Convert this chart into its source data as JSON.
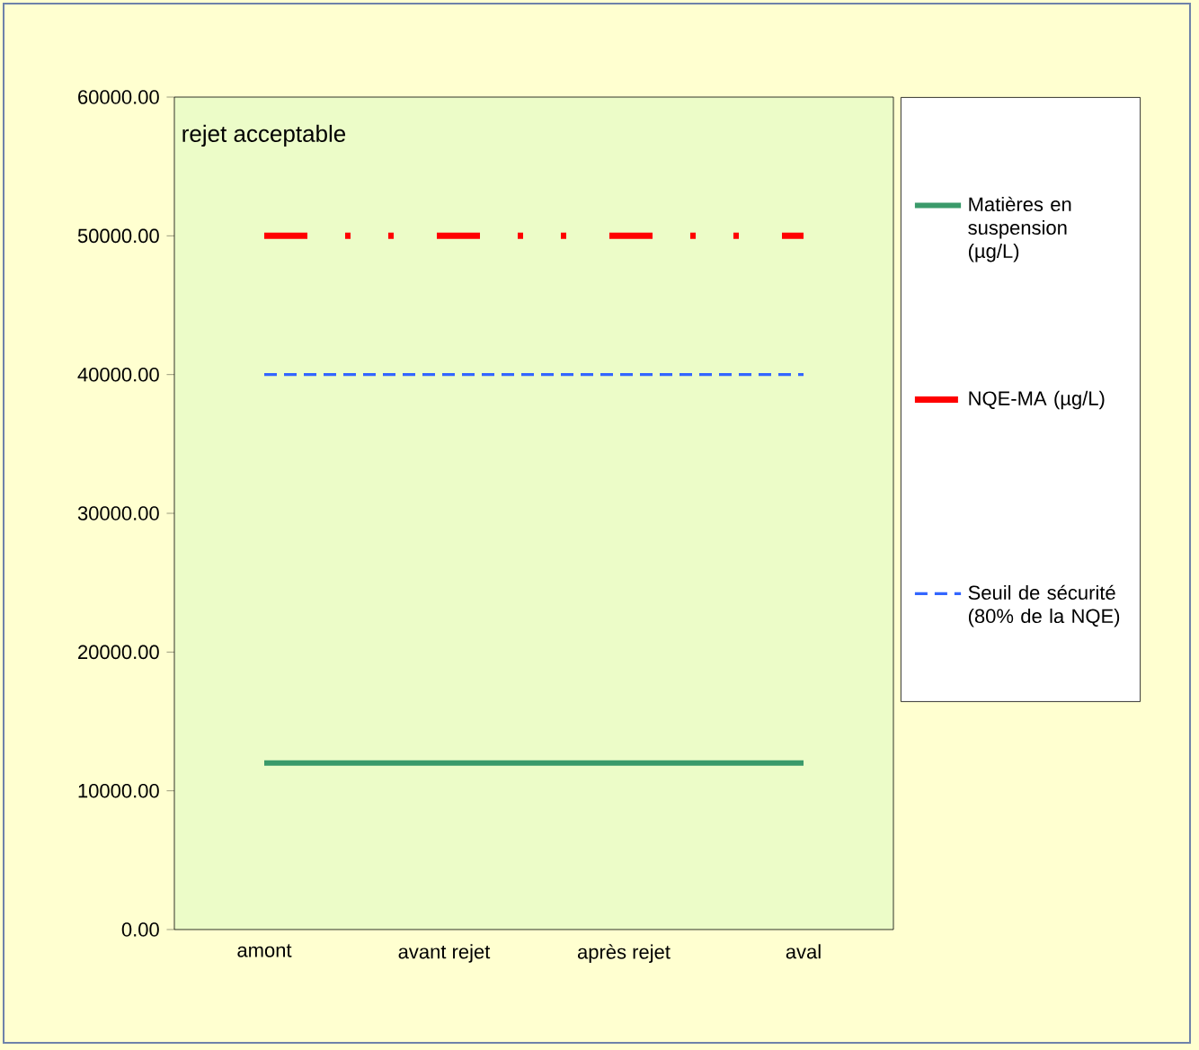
{
  "chart_data": {
    "type": "line",
    "categories": [
      "amont",
      "avant rejet",
      "après rejet",
      "aval"
    ],
    "series": [
      {
        "name": "Matières en suspension (µg/L)",
        "color": "#3a9a6a",
        "line_style": "solid",
        "values": [
          12000,
          12000,
          12000,
          12000
        ]
      },
      {
        "name": "NQE-MA (µg/L)",
        "color": "#ff0000",
        "line_style": "dashdotdot",
        "values": [
          50000,
          50000,
          50000,
          50000
        ]
      },
      {
        "name": "Seuil de sécurité (80% de la NQE)",
        "color": "#3366ff",
        "line_style": "dashed",
        "values": [
          40000,
          40000,
          40000,
          40000
        ]
      }
    ],
    "ylim": [
      0,
      60000
    ],
    "yticks": [
      {
        "value": 0,
        "label": "0.00"
      },
      {
        "value": 10000,
        "label": "10000.00"
      },
      {
        "value": 20000,
        "label": "20000.00"
      },
      {
        "value": 30000,
        "label": "30000.00"
      },
      {
        "value": 40000,
        "label": "40000.00"
      },
      {
        "value": 50000,
        "label": "50000.00"
      },
      {
        "value": 60000,
        "label": "60000.00"
      }
    ],
    "annotations": [
      "rejet acceptable"
    ],
    "legend": "right"
  }
}
